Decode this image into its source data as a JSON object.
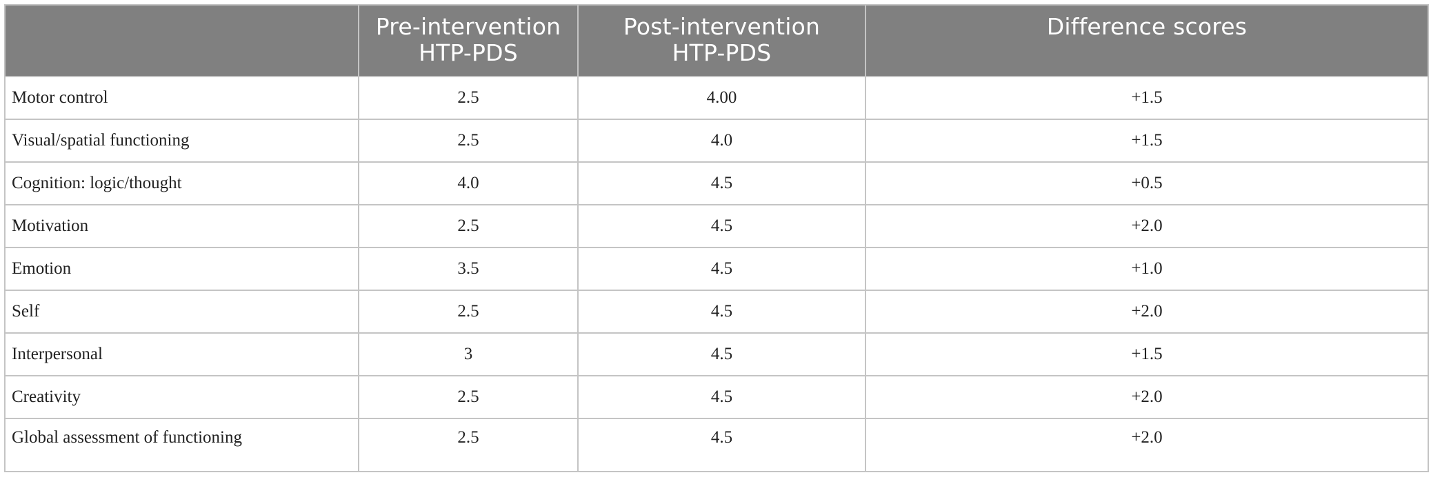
{
  "table": {
    "headers": [
      {
        "lines": [
          ""
        ]
      },
      {
        "lines": [
          "Pre-intervention",
          "HTP-PDS"
        ]
      },
      {
        "lines": [
          "Post-intervention",
          "HTP-PDS"
        ]
      },
      {
        "lines": [
          "Difference scores"
        ]
      }
    ],
    "rows": [
      {
        "label": "Motor control",
        "pre": "2.5",
        "post": "4.00",
        "diff": "+1.5"
      },
      {
        "label": "Visual/spatial functioning",
        "pre": "2.5",
        "post": "4.0",
        "diff": "+1.5"
      },
      {
        "label": "Cognition: logic/thought",
        "pre": "4.0",
        "post": "4.5",
        "diff": "+0.5"
      },
      {
        "label": "Motivation",
        "pre": "2.5",
        "post": "4.5",
        "diff": "+2.0"
      },
      {
        "label": "Emotion",
        "pre": "3.5",
        "post": "4.5",
        "diff": "+1.0"
      },
      {
        "label": "Self",
        "pre": "2.5",
        "post": "4.5",
        "diff": "+2.0"
      },
      {
        "label": "Interpersonal",
        "pre": "3",
        "post": "4.5",
        "diff": "+1.5"
      },
      {
        "label": "Creativity",
        "pre": "2.5",
        "post": "4.5",
        "diff": "+2.0"
      },
      {
        "label": "Global assessment of functioning",
        "pre": "2.5",
        "post": "4.5",
        "diff": "+2.0"
      }
    ]
  },
  "colors": {
    "header_background": "#808080",
    "header_text": "#ffffff",
    "grid_lines": "#c4c4c4",
    "body_text": "#222222"
  }
}
